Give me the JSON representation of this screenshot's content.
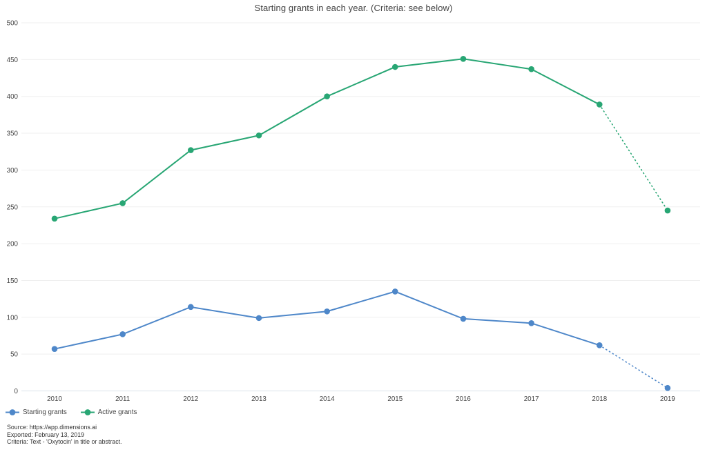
{
  "title": "Starting grants in each year. (Criteria: see below)",
  "chart_data": {
    "type": "line",
    "x": [
      "2010",
      "2011",
      "2012",
      "2013",
      "2014",
      "2015",
      "2016",
      "2017",
      "2018",
      "2019"
    ],
    "series": [
      {
        "name": "Starting grants",
        "color": "#4e87c9",
        "values": [
          57,
          77,
          114,
          99,
          108,
          135,
          98,
          92,
          62,
          4
        ]
      },
      {
        "name": "Active grants",
        "color": "#28a674",
        "values": [
          234,
          255,
          327,
          347,
          400,
          440,
          451,
          437,
          389,
          245
        ]
      }
    ],
    "dashed_from_index": 8,
    "ylim": [
      0,
      500
    ],
    "ytick_step": 50,
    "grid": true,
    "grid_color": "#efefef",
    "axis_line_color": "#d9e1e9",
    "tick_color": "#444444",
    "legend_position": "bottom-left",
    "title": "Starting grants in each year. (Criteria: see below)",
    "xlabel": "",
    "ylabel": ""
  },
  "footer": {
    "source": "Source: https://app.dimensions.ai",
    "exported": "Exported: February 13, 2019",
    "criteria": "Criteria: Text - 'Oxytocin' in title or abstract."
  }
}
